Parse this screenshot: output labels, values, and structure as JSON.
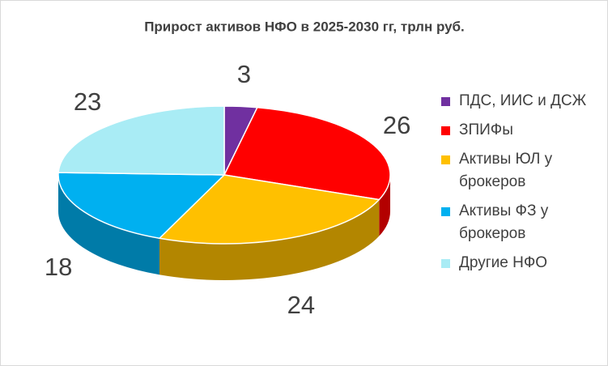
{
  "chart_data": {
    "type": "pie3d",
    "title": "Прирост активов НФО в 2025-2030 гг, трлн руб.",
    "categories": [
      "ПДС, ИИС и ДСЖ",
      "ЗПИФы",
      "Активы ЮЛ у брокеров",
      "Активы ФЗ у брокеров",
      "Другие НФО"
    ],
    "values": [
      3,
      26,
      24,
      18,
      23
    ],
    "colors": [
      "#7030a0",
      "#ff0000",
      "#ffc000",
      "#00b0f0",
      "#a9ecf5"
    ],
    "legend": "right"
  }
}
